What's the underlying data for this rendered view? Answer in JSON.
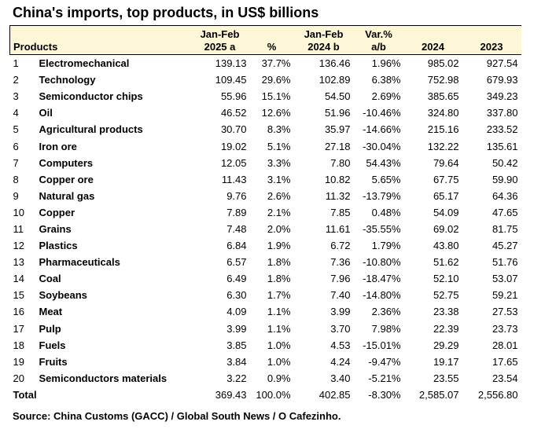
{
  "title": "China's imports, top products, in US$ billions",
  "headers": {
    "products": "Products",
    "jf2025_line1": "Jan-Feb",
    "jf2025_line2": "2025 a",
    "pct": "%",
    "jf2024_line1": "Jan-Feb",
    "jf2024_line2": "2024 b",
    "var_line1": "Var.%",
    "var_line2": "a/b",
    "y2024": "2024",
    "y2023": "2023"
  },
  "rows": [
    {
      "idx": "1",
      "product": "Electromechanical",
      "a2025": "139.13",
      "pct": "37.7%",
      "b2024": "136.46",
      "var": "1.96%",
      "y2024": "985.02",
      "y2023": "927.54"
    },
    {
      "idx": "2",
      "product": "Technology",
      "a2025": "109.45",
      "pct": "29.6%",
      "b2024": "102.89",
      "var": "6.38%",
      "y2024": "752.98",
      "y2023": "679.93"
    },
    {
      "idx": "3",
      "product": "Semiconductor chips",
      "a2025": "55.96",
      "pct": "15.1%",
      "b2024": "54.50",
      "var": "2.69%",
      "y2024": "385.65",
      "y2023": "349.23"
    },
    {
      "idx": "4",
      "product": "Oil",
      "a2025": "46.52",
      "pct": "12.6%",
      "b2024": "51.96",
      "var": "-10.46%",
      "y2024": "324.80",
      "y2023": "337.80"
    },
    {
      "idx": "5",
      "product": "Agricultural products",
      "a2025": "30.70",
      "pct": "8.3%",
      "b2024": "35.97",
      "var": "-14.66%",
      "y2024": "215.16",
      "y2023": "233.52"
    },
    {
      "idx": "6",
      "product": "Iron ore",
      "a2025": "19.02",
      "pct": "5.1%",
      "b2024": "27.18",
      "var": "-30.04%",
      "y2024": "132.22",
      "y2023": "135.61"
    },
    {
      "idx": "7",
      "product": "Computers",
      "a2025": "12.05",
      "pct": "3.3%",
      "b2024": "7.80",
      "var": "54.43%",
      "y2024": "79.64",
      "y2023": "50.42"
    },
    {
      "idx": "8",
      "product": "Copper ore",
      "a2025": "11.43",
      "pct": "3.1%",
      "b2024": "10.82",
      "var": "5.65%",
      "y2024": "67.75",
      "y2023": "59.90"
    },
    {
      "idx": "9",
      "product": "Natural gas",
      "a2025": "9.76",
      "pct": "2.6%",
      "b2024": "11.32",
      "var": "-13.79%",
      "y2024": "65.17",
      "y2023": "64.36"
    },
    {
      "idx": "10",
      "product": "Copper",
      "a2025": "7.89",
      "pct": "2.1%",
      "b2024": "7.85",
      "var": "0.48%",
      "y2024": "54.09",
      "y2023": "47.65"
    },
    {
      "idx": "11",
      "product": "Grains",
      "a2025": "7.48",
      "pct": "2.0%",
      "b2024": "11.61",
      "var": "-35.55%",
      "y2024": "69.02",
      "y2023": "81.75"
    },
    {
      "idx": "12",
      "product": "Plastics",
      "a2025": "6.84",
      "pct": "1.9%",
      "b2024": "6.72",
      "var": "1.79%",
      "y2024": "43.80",
      "y2023": "45.27"
    },
    {
      "idx": "13",
      "product": "Pharmaceuticals",
      "a2025": "6.57",
      "pct": "1.8%",
      "b2024": "7.36",
      "var": "-10.80%",
      "y2024": "51.62",
      "y2023": "51.76"
    },
    {
      "idx": "14",
      "product": "Coal",
      "a2025": "6.49",
      "pct": "1.8%",
      "b2024": "7.96",
      "var": "-18.47%",
      "y2024": "52.10",
      "y2023": "53.07"
    },
    {
      "idx": "15",
      "product": "Soybeans",
      "a2025": "6.30",
      "pct": "1.7%",
      "b2024": "7.40",
      "var": "-14.80%",
      "y2024": "52.75",
      "y2023": "59.21"
    },
    {
      "idx": "16",
      "product": "Meat",
      "a2025": "4.09",
      "pct": "1.1%",
      "b2024": "3.99",
      "var": "2.36%",
      "y2024": "23.38",
      "y2023": "27.53"
    },
    {
      "idx": "17",
      "product": "Pulp",
      "a2025": "3.99",
      "pct": "1.1%",
      "b2024": "3.70",
      "var": "7.98%",
      "y2024": "22.39",
      "y2023": "23.73"
    },
    {
      "idx": "18",
      "product": "Fuels",
      "a2025": "3.85",
      "pct": "1.0%",
      "b2024": "4.53",
      "var": "-15.01%",
      "y2024": "29.29",
      "y2023": "28.01"
    },
    {
      "idx": "19",
      "product": "Fruits",
      "a2025": "3.84",
      "pct": "1.0%",
      "b2024": "4.24",
      "var": "-9.47%",
      "y2024": "19.17",
      "y2023": "17.65"
    },
    {
      "idx": "20",
      "product": "Semiconductors materials",
      "a2025": "3.22",
      "pct": "0.9%",
      "b2024": "3.40",
      "var": "-5.21%",
      "y2024": "23.55",
      "y2023": "23.54"
    }
  ],
  "total": {
    "label": "Total",
    "a2025": "369.43",
    "pct": "100.0%",
    "b2024": "402.85",
    "var": "-8.30%",
    "y2024": "2,585.07",
    "y2023": "2,556.80"
  },
  "source": "Source: China Customs (GACC) / Global South News / O Cafezinho.",
  "colors": {
    "header_bg": "#fdf7d8",
    "text": "#000000"
  }
}
